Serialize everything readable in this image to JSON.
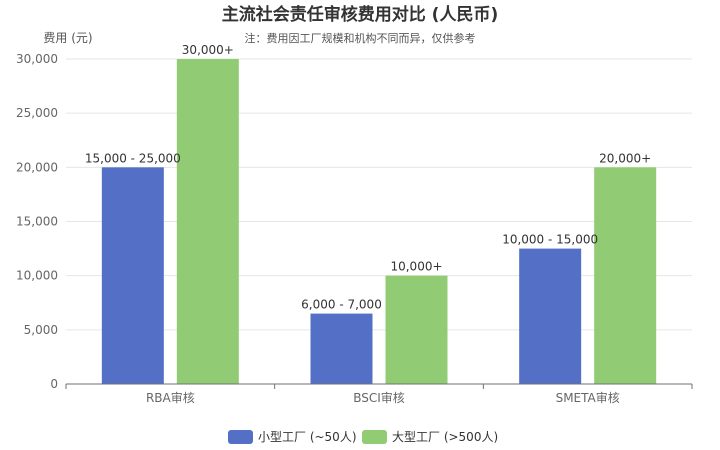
{
  "chart_data": {
    "type": "bar",
    "title": "主流社会责任审核费用对比 (人民币)",
    "subtitle": "注：费用因工厂规模和机构不同而异，仅供参考",
    "ylabel": "费用 (元)",
    "xlabel": "",
    "ylim": [
      0,
      30000
    ],
    "yticks": [
      0,
      5000,
      10000,
      15000,
      20000,
      25000,
      30000
    ],
    "ytick_labels": [
      "0",
      "5,000",
      "10,000",
      "15,000",
      "20,000",
      "25,000",
      "30,000"
    ],
    "grid": true,
    "legend_position": "bottom",
    "categories": [
      "RBA审核",
      "BSCI审核",
      "SMETA审核"
    ],
    "series": [
      {
        "name": "小型工厂 (~50人)",
        "color": "#5470c6",
        "values": [
          20000,
          6500,
          12500
        ],
        "labels": [
          "15,000 - 25,000",
          "6,000 - 7,000",
          "10,000 - 15,000"
        ]
      },
      {
        "name": "大型工厂 (>500人)",
        "color": "#91cc75",
        "values": [
          30000,
          10000,
          20000
        ],
        "labels": [
          "30,000+",
          "10,000+",
          "20,000+"
        ]
      }
    ]
  }
}
